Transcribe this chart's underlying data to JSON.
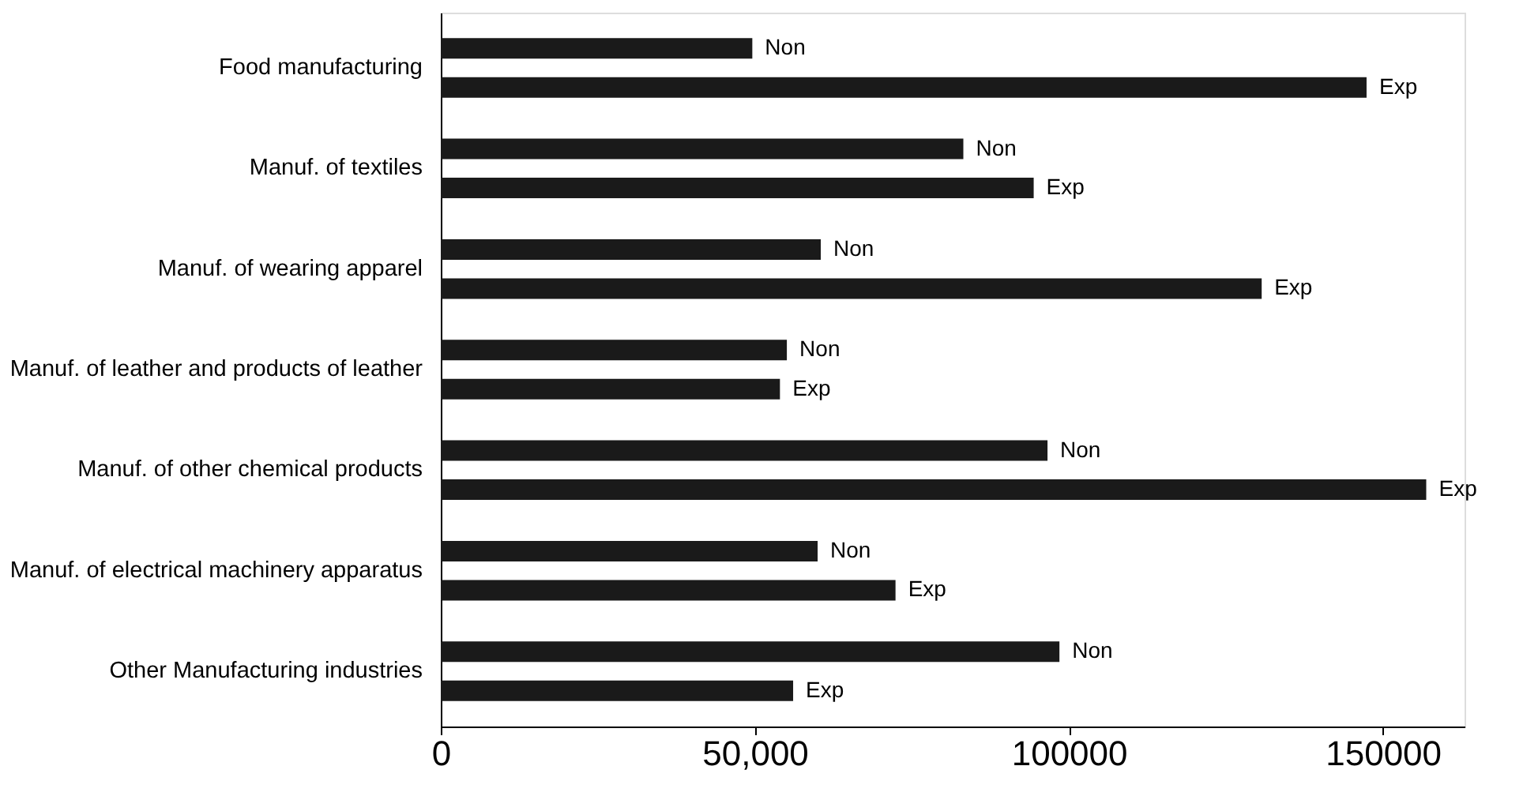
{
  "chart_data": {
    "type": "bar",
    "orientation": "horizontal",
    "categories": [
      "Food manufacturing",
      "Manuf. of textiles",
      "Manuf. of wearing apparel",
      "Manuf. of leather and products of leather",
      "Manuf. of other chemical products",
      "Manuf. of electrical machinery apparatus",
      "Other Manufacturing industries"
    ],
    "series": [
      {
        "name": "Non",
        "color": "#1a1a1a",
        "values": [
          49600,
          83200,
          60500,
          55100,
          96600,
          60000,
          98500
        ]
      },
      {
        "name": "Exp",
        "color": "#1a1a1a",
        "values": [
          147400,
          94400,
          130700,
          54000,
          156900,
          72400,
          56100
        ]
      }
    ],
    "xlim": [
      0,
      163000
    ],
    "xticks": [
      0,
      {
        "value": 50000,
        "label": "50,000"
      },
      100000,
      {
        "value": 150000,
        "label": "150000"
      }
    ],
    "grid": false,
    "legend": false
  }
}
